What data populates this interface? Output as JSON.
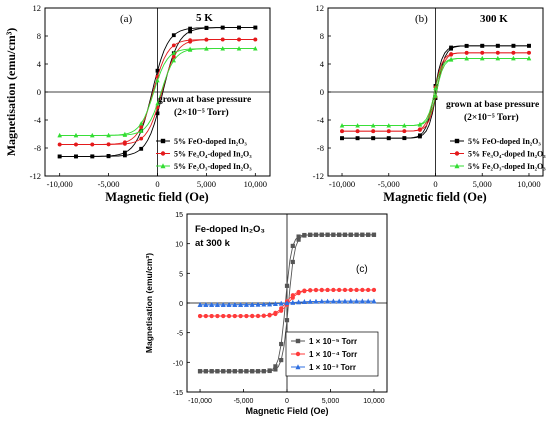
{
  "chart_data": [
    {
      "id": "a",
      "type": "line",
      "panel_label": "(a)",
      "title": "5 K",
      "xlabel": "Magnetic field (Oe)",
      "ylabel": "Magnetisation (emu/cm³)",
      "xlim": [
        -11500,
        11500
      ],
      "ylim": [
        -12,
        12
      ],
      "xticks": [
        -10000,
        -5000,
        0,
        5000,
        10000
      ],
      "xtick_labels": [
        "-10,000",
        "-5,000",
        "0",
        "5,000",
        "10,000"
      ],
      "yticks": [
        -12,
        -8,
        -4,
        0,
        4,
        8,
        12
      ],
      "ytick_labels": [
        "-12",
        "-8",
        "-4",
        "0",
        "4",
        "8",
        "12"
      ],
      "note_line1": "grown at base pressure",
      "note_line2": "(2×10⁻⁵ Torr)",
      "legend_position": "lower-right",
      "series": [
        {
          "name": "5% FeO-doped In₂O₃",
          "color": "#000000",
          "marker": "square",
          "ms": 9.2,
          "hc": 550,
          "w": 1600
        },
        {
          "name": "5% Fe₃O₄-doped In₂O₃",
          "color": "#e41a1c",
          "marker": "circle",
          "ms": 7.5,
          "hc": 450,
          "w": 1500
        },
        {
          "name": "5% Fe₂O₃-doped In₂O₃",
          "color": "#33dd33",
          "marker": "triangle",
          "ms": 6.2,
          "hc": 380,
          "w": 1400
        }
      ]
    },
    {
      "id": "b",
      "type": "line",
      "panel_label": "(b)",
      "title": "300 K",
      "xlabel": "Magnetic field (Oe)",
      "ylabel": "",
      "xlim": [
        -11500,
        11500
      ],
      "ylim": [
        -12,
        12
      ],
      "xticks": [
        -10000,
        -5000,
        0,
        5000,
        10000
      ],
      "xtick_labels": [
        "-10,000",
        "-5,000",
        "0",
        "5,000",
        "10,000"
      ],
      "yticks": [
        -12,
        -8,
        -4,
        0,
        4,
        8,
        12
      ],
      "ytick_labels": [
        "-12",
        "-8",
        "-4",
        "0",
        "4",
        "8",
        "12"
      ],
      "note_line1": "grown at base pressure",
      "note_line2": "(2×10⁻⁵ Torr)",
      "legend_position": "lower-right",
      "series": [
        {
          "name": "5% FeO-doped In₂O₃",
          "color": "#000000",
          "marker": "square",
          "ms": 6.6,
          "hc": 120,
          "w": 900
        },
        {
          "name": "5% Fe₃O₄-doped In₂O₃",
          "color": "#e41a1c",
          "marker": "circle",
          "ms": 5.6,
          "hc": 100,
          "w": 850
        },
        {
          "name": "5% Fe₂O₃-doped In₂O₃",
          "color": "#33dd33",
          "marker": "triangle",
          "ms": 4.8,
          "hc": 90,
          "w": 800
        }
      ]
    },
    {
      "id": "c",
      "type": "line",
      "panel_label": "(c)",
      "title_line1": "Fe-doped In₂O₃",
      "title_line2": "at 300 k",
      "xlabel": "Magnetic Field (Oe)",
      "ylabel": "Magnetisation (emu/cm³)",
      "xlim": [
        -11500,
        11500
      ],
      "ylim": [
        -15,
        15
      ],
      "xticks": [
        -10000,
        -5000,
        0,
        5000,
        10000
      ],
      "xtick_labels": [
        "-10,000",
        "-5,000",
        "0",
        "5,000",
        "10,000"
      ],
      "yticks": [
        -15,
        -10,
        -5,
        0,
        5,
        10,
        15
      ],
      "ytick_labels": [
        "-15",
        "-10",
        "-5",
        "0",
        "5",
        "10",
        "15"
      ],
      "legend_position": "lower-right",
      "series": [
        {
          "name": "1 × 10⁻⁵ Torr",
          "color": "#555555",
          "marker": "square",
          "ms": 11.5,
          "hc": 180,
          "w": 700
        },
        {
          "name": "1 × 10⁻⁴ Torr",
          "color": "#ff3b3b",
          "marker": "circle",
          "ms": 2.2,
          "hc": 150,
          "w": 1200
        },
        {
          "name": "1 × 10⁻³ Torr",
          "color": "#2f6fe0",
          "marker": "triangle",
          "ms": 0.3,
          "hc": 100,
          "w": 2500
        }
      ]
    }
  ]
}
